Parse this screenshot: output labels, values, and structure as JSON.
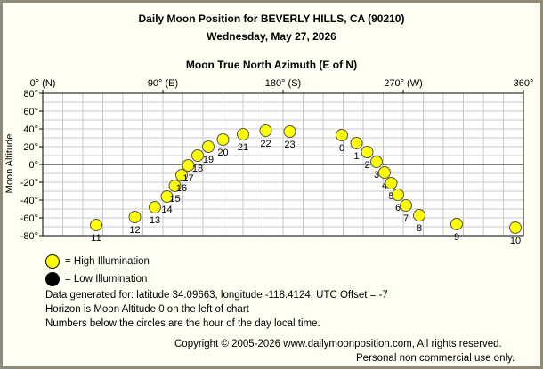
{
  "header": {
    "title": "Daily Moon Position for BEVERLY HILLS, CA (90210)",
    "date": "Wednesday, May 27, 2026"
  },
  "chart_data": {
    "type": "scatter",
    "title": "Daily Moon Position for BEVERLY HILLS, CA (90210)",
    "subtitle": "Wednesday, May 27, 2026",
    "xlabel": "Moon True North Azimuth (E of N)",
    "ylabel": "Moon Altitude",
    "xlim": [
      0,
      360
    ],
    "ylim": [
      -80,
      80
    ],
    "x_ticks": [
      {
        "value": 0,
        "label": "0° (N)"
      },
      {
        "value": 90,
        "label": "90° (E)"
      },
      {
        "value": 180,
        "label": "180° (S)"
      },
      {
        "value": 270,
        "label": "270° (W)"
      },
      {
        "value": 360,
        "label": "360°"
      }
    ],
    "y_ticks": [
      {
        "value": 80,
        "label": "80°"
      },
      {
        "value": 60,
        "label": "60°"
      },
      {
        "value": 40,
        "label": "40°"
      },
      {
        "value": 20,
        "label": "20°"
      },
      {
        "value": 0,
        "label": "0°"
      },
      {
        "value": -20,
        "label": "-20°"
      },
      {
        "value": -40,
        "label": "-40°"
      },
      {
        "value": -60,
        "label": "-60°"
      },
      {
        "value": -80,
        "label": "-80°"
      }
    ],
    "grid": true,
    "points": [
      {
        "hour": "0",
        "azimuth": 224,
        "altitude": 33,
        "illumination": "high"
      },
      {
        "hour": "1",
        "azimuth": 235,
        "altitude": 24,
        "illumination": "high"
      },
      {
        "hour": "2",
        "azimuth": 243,
        "altitude": 14,
        "illumination": "high"
      },
      {
        "hour": "3",
        "azimuth": 250,
        "altitude": 3,
        "illumination": "high"
      },
      {
        "hour": "4",
        "azimuth": 256,
        "altitude": -9,
        "illumination": "high"
      },
      {
        "hour": "5",
        "azimuth": 261,
        "altitude": -21,
        "illumination": "high"
      },
      {
        "hour": "6",
        "azimuth": 266,
        "altitude": -34,
        "illumination": "high"
      },
      {
        "hour": "7",
        "azimuth": 272,
        "altitude": -46,
        "illumination": "high"
      },
      {
        "hour": "8",
        "azimuth": 282,
        "altitude": -57,
        "illumination": "high"
      },
      {
        "hour": "9",
        "azimuth": 310,
        "altitude": -67,
        "illumination": "high"
      },
      {
        "hour": "10",
        "azimuth": 354,
        "altitude": -71,
        "illumination": "high"
      },
      {
        "hour": "11",
        "azimuth": 40,
        "altitude": -68,
        "illumination": "high"
      },
      {
        "hour": "12",
        "azimuth": 69,
        "altitude": -59,
        "illumination": "high"
      },
      {
        "hour": "13",
        "azimuth": 84,
        "altitude": -48,
        "illumination": "high"
      },
      {
        "hour": "14",
        "azimuth": 93,
        "altitude": -36,
        "illumination": "high"
      },
      {
        "hour": "15",
        "azimuth": 99,
        "altitude": -24,
        "illumination": "high"
      },
      {
        "hour": "16",
        "azimuth": 104,
        "altitude": -12,
        "illumination": "high"
      },
      {
        "hour": "17",
        "azimuth": 109,
        "altitude": -1,
        "illumination": "high"
      },
      {
        "hour": "18",
        "azimuth": 116,
        "altitude": 10,
        "illumination": "high"
      },
      {
        "hour": "19",
        "azimuth": 124,
        "altitude": 20,
        "illumination": "high"
      },
      {
        "hour": "20",
        "azimuth": 135,
        "altitude": 28,
        "illumination": "high"
      },
      {
        "hour": "21",
        "azimuth": 150,
        "altitude": 34,
        "illumination": "high"
      },
      {
        "hour": "22",
        "azimuth": 167,
        "altitude": 38,
        "illumination": "high"
      },
      {
        "hour": "23",
        "azimuth": 185,
        "altitude": 37,
        "illumination": "high"
      }
    ]
  },
  "legend": {
    "high_label": "= High Illumination",
    "low_label": "= Low Illumination",
    "high_color": "#ffff00",
    "low_color": "#000000"
  },
  "footer": {
    "line1": "Data generated for: latitude 34.09663, longitude -118.4124, UTC Offset = -7",
    "line2": "Horizon is Moon Altitude 0 on the left of chart",
    "line3": "Numbers below the circles are the hour of the day local time.",
    "copyright": "Copyright © 2005-2026 www.dailymoonposition.com, All rights reserved.",
    "notice": "Personal non commercial use only."
  }
}
